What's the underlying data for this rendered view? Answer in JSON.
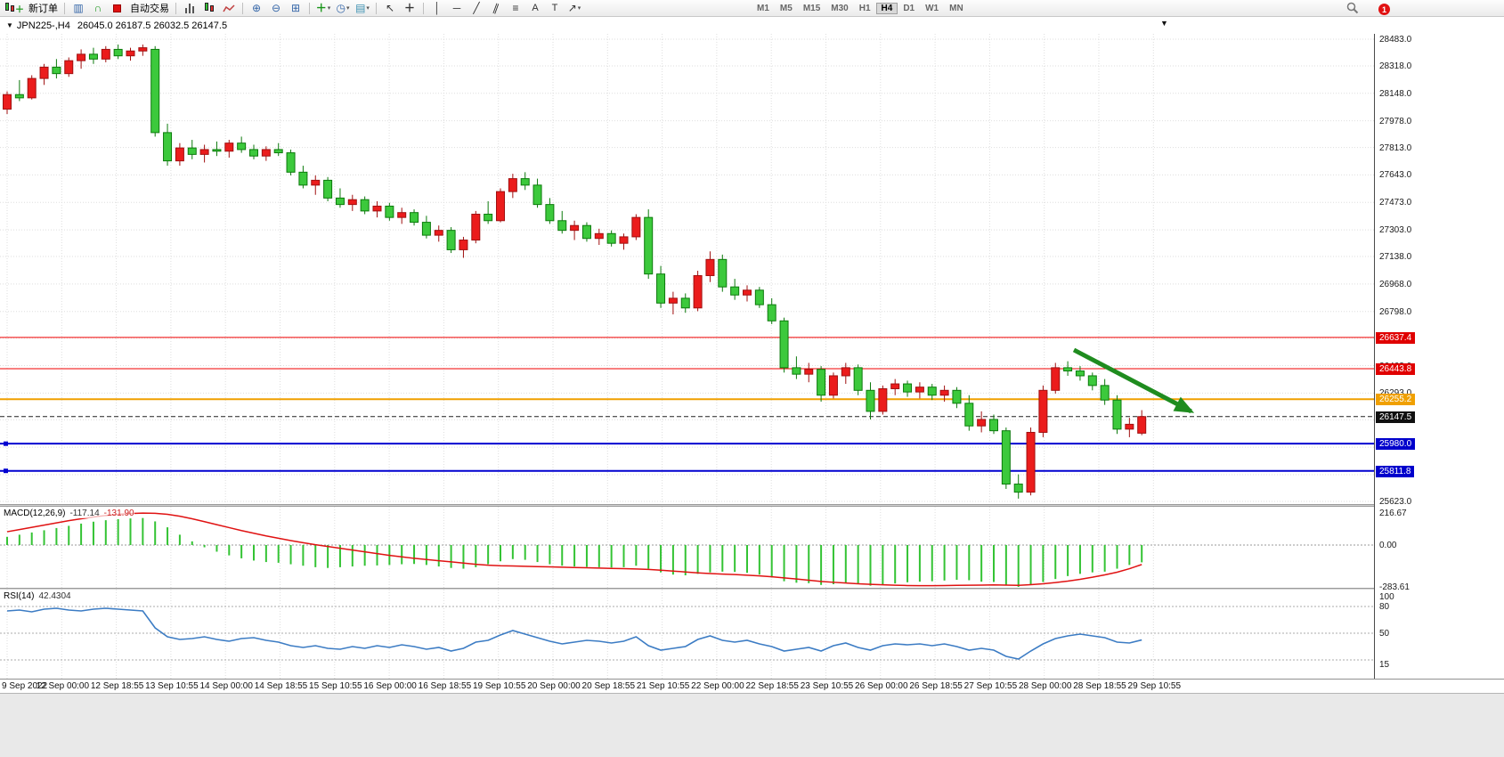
{
  "toolbar": {
    "new_order_label": "新订单",
    "autotrading_label": "自动交易",
    "timeframes": [
      "M1",
      "M5",
      "M15",
      "M30",
      "H1",
      "H4",
      "D1",
      "W1",
      "MN"
    ],
    "active_timeframe": "H4",
    "notification_count": "1"
  },
  "chart_header": {
    "symbol": "JPN225-,H4",
    "ohlc": "26045.0 26187.5 26032.5 26147.5"
  },
  "indicators": {
    "macd": {
      "label": "MACD(12,26,9)",
      "value_main": "-117.14",
      "value_signal": "-131.90"
    },
    "rsi": {
      "label": "RSI(14)",
      "value": "42.4304"
    }
  },
  "chart_data": {
    "type": "candlestick",
    "title": "JPN225-,H4",
    "symbol": "JPN225-",
    "period": "H4",
    "current_bar": {
      "open": 26045.0,
      "high": 26187.5,
      "low": 26032.5,
      "close": 26147.5
    },
    "up_color": "#eb1c1c",
    "down_color": "#3cc93c",
    "price_ticks": [
      28483,
      28318,
      28148,
      27978,
      27813,
      27643,
      27473,
      27303,
      27138,
      26968,
      26798,
      26633,
      26463,
      26293,
      26128,
      25958,
      25788,
      25623
    ],
    "x_ticks": [
      "9 Sep 2022",
      "12 Sep 00:00",
      "12 Sep 18:55",
      "13 Sep 10:55",
      "14 Sep 00:00",
      "14 Sep 18:55",
      "15 Sep 10:55",
      "16 Sep 00:00",
      "16 Sep 18:55",
      "19 Sep 10:55",
      "20 Sep 00:00",
      "20 Sep 18:55",
      "21 Sep 10:55",
      "22 Sep 00:00",
      "22 Sep 18:55",
      "23 Sep 10:55",
      "26 Sep 00:00",
      "26 Sep 18:55",
      "27 Sep 10:55",
      "28 Sep 00:00",
      "28 Sep 18:55",
      "29 Sep 10:55"
    ],
    "candles": [
      [
        28050,
        28160,
        28020,
        28140
      ],
      [
        28140,
        28230,
        28100,
        28120
      ],
      [
        28120,
        28260,
        28110,
        28240
      ],
      [
        28240,
        28330,
        28200,
        28310
      ],
      [
        28310,
        28360,
        28240,
        28270
      ],
      [
        28270,
        28370,
        28250,
        28350
      ],
      [
        28350,
        28420,
        28300,
        28390
      ],
      [
        28390,
        28430,
        28330,
        28360
      ],
      [
        28360,
        28440,
        28340,
        28420
      ],
      [
        28420,
        28450,
        28360,
        28380
      ],
      [
        28380,
        28430,
        28350,
        28410
      ],
      [
        28410,
        28450,
        28380,
        28430
      ],
      [
        28420,
        28440,
        27880,
        27905
      ],
      [
        27905,
        27960,
        27700,
        27730
      ],
      [
        27730,
        27840,
        27700,
        27810
      ],
      [
        27810,
        27860,
        27740,
        27770
      ],
      [
        27770,
        27830,
        27720,
        27800
      ],
      [
        27800,
        27850,
        27760,
        27790
      ],
      [
        27790,
        27860,
        27750,
        27840
      ],
      [
        27840,
        27880,
        27780,
        27800
      ],
      [
        27800,
        27830,
        27740,
        27760
      ],
      [
        27760,
        27820,
        27730,
        27800
      ],
      [
        27800,
        27840,
        27760,
        27780
      ],
      [
        27780,
        27800,
        27640,
        27660
      ],
      [
        27660,
        27700,
        27560,
        27580
      ],
      [
        27580,
        27640,
        27520,
        27610
      ],
      [
        27610,
        27630,
        27480,
        27500
      ],
      [
        27500,
        27560,
        27440,
        27460
      ],
      [
        27460,
        27520,
        27420,
        27490
      ],
      [
        27490,
        27510,
        27400,
        27420
      ],
      [
        27420,
        27480,
        27380,
        27450
      ],
      [
        27450,
        27470,
        27360,
        27380
      ],
      [
        27380,
        27440,
        27340,
        27410
      ],
      [
        27410,
        27430,
        27330,
        27350
      ],
      [
        27350,
        27390,
        27250,
        27270
      ],
      [
        27270,
        27330,
        27230,
        27300
      ],
      [
        27300,
        27320,
        27160,
        27180
      ],
      [
        27180,
        27260,
        27130,
        27240
      ],
      [
        27240,
        27420,
        27220,
        27400
      ],
      [
        27400,
        27480,
        27340,
        27360
      ],
      [
        27360,
        27560,
        27350,
        27540
      ],
      [
        27540,
        27650,
        27500,
        27620
      ],
      [
        27620,
        27660,
        27550,
        27580
      ],
      [
        27580,
        27620,
        27440,
        27460
      ],
      [
        27460,
        27500,
        27340,
        27360
      ],
      [
        27360,
        27420,
        27280,
        27300
      ],
      [
        27300,
        27360,
        27240,
        27330
      ],
      [
        27330,
        27350,
        27230,
        27250
      ],
      [
        27250,
        27310,
        27210,
        27280
      ],
      [
        27280,
        27300,
        27200,
        27220
      ],
      [
        27220,
        27280,
        27180,
        27260
      ],
      [
        27260,
        27400,
        27240,
        27380
      ],
      [
        27380,
        27430,
        27000,
        27030
      ],
      [
        27030,
        27080,
        26820,
        26850
      ],
      [
        26850,
        26920,
        26780,
        26880
      ],
      [
        26880,
        26910,
        26790,
        26820
      ],
      [
        26820,
        27050,
        26800,
        27020
      ],
      [
        27020,
        27170,
        26980,
        27120
      ],
      [
        27120,
        27150,
        26920,
        26950
      ],
      [
        26950,
        27000,
        26870,
        26900
      ],
      [
        26900,
        26960,
        26860,
        26930
      ],
      [
        26930,
        26950,
        26820,
        26840
      ],
      [
        26840,
        26880,
        26720,
        26740
      ],
      [
        26740,
        26760,
        26420,
        26450
      ],
      [
        26450,
        26520,
        26380,
        26410
      ],
      [
        26410,
        26480,
        26360,
        26440
      ],
      [
        26440,
        26460,
        26240,
        26280
      ],
      [
        26280,
        26420,
        26260,
        26400
      ],
      [
        26400,
        26480,
        26350,
        26450
      ],
      [
        26450,
        26470,
        26280,
        26310
      ],
      [
        26310,
        26360,
        26130,
        26180
      ],
      [
        26180,
        26340,
        26160,
        26320
      ],
      [
        26320,
        26380,
        26280,
        26350
      ],
      [
        26350,
        26370,
        26270,
        26300
      ],
      [
        26300,
        26360,
        26260,
        26330
      ],
      [
        26330,
        26350,
        26250,
        26280
      ],
      [
        26280,
        26340,
        26240,
        26310
      ],
      [
        26310,
        26330,
        26200,
        26230
      ],
      [
        26230,
        26280,
        26060,
        26090
      ],
      [
        26090,
        26180,
        26050,
        26130
      ],
      [
        26130,
        26160,
        26040,
        26060
      ],
      [
        26060,
        26080,
        25700,
        25730
      ],
      [
        25730,
        25790,
        25640,
        25680
      ],
      [
        25680,
        26080,
        25660,
        26050
      ],
      [
        26050,
        26340,
        26020,
        26310
      ],
      [
        26310,
        26480,
        26290,
        26450
      ],
      [
        26450,
        26490,
        26400,
        26430
      ],
      [
        26430,
        26460,
        26370,
        26400
      ],
      [
        26400,
        26420,
        26310,
        26340
      ],
      [
        26340,
        26380,
        26220,
        26250
      ],
      [
        26250,
        26280,
        26040,
        26070
      ],
      [
        26070,
        26140,
        26020,
        26100
      ],
      [
        26045,
        26187.5,
        26032.5,
        26147.5
      ]
    ],
    "hlines": [
      {
        "name": "resistance-line-upper",
        "price": 26637.4,
        "color": "#f00000",
        "width": 1,
        "style": "solid",
        "label": "26637.4",
        "badge": "#e00000",
        "handle": false
      },
      {
        "name": "resistance-line-lower",
        "price": 26443.8,
        "color": "#f00000",
        "width": 1,
        "style": "solid",
        "label": "26443.8",
        "badge": "#e00000",
        "handle": false
      },
      {
        "name": "support-line-orange",
        "price": 26255.2,
        "color": "#f0a000",
        "width": 2,
        "style": "solid",
        "label": "26255.2",
        "badge": "#f0a000",
        "handle": false
      },
      {
        "name": "current-price-line",
        "price": 26147.5,
        "color": "#202020",
        "width": 1,
        "style": "dashed",
        "label": "26147.5",
        "badge": "#101010",
        "handle": false
      },
      {
        "name": "support-line-blue-1",
        "price": 25980.0,
        "color": "#0000d0",
        "width": 2,
        "style": "solid",
        "label": "25980.0",
        "badge": "#0000cc",
        "handle": true
      },
      {
        "name": "support-line-blue-2",
        "price": 25811.8,
        "color": "#0000d0",
        "width": 2,
        "style": "solid",
        "label": "25811.8",
        "badge": "#0000cc",
        "handle": true
      }
    ],
    "arrow": {
      "from_bar": 86.5,
      "from_price": 26560,
      "to_bar": 96,
      "to_price": 26180,
      "color": "#1f8c1f",
      "width": 5
    },
    "macd": {
      "axis_ticks": [
        216.67,
        0,
        -283.61
      ],
      "histogram": [
        55,
        70,
        85,
        100,
        115,
        130,
        145,
        158,
        168,
        175,
        180,
        183,
        160,
        120,
        70,
        25,
        -15,
        -45,
        -70,
        -90,
        -105,
        -115,
        -120,
        -130,
        -140,
        -150,
        -155,
        -150,
        -145,
        -140,
        -138,
        -135,
        -130,
        -128,
        -135,
        -145,
        -155,
        -160,
        -150,
        -130,
        -110,
        -95,
        -100,
        -115,
        -130,
        -140,
        -145,
        -148,
        -150,
        -152,
        -150,
        -140,
        -160,
        -185,
        -200,
        -205,
        -195,
        -185,
        -180,
        -182,
        -188,
        -200,
        -220,
        -245,
        -255,
        -258,
        -270,
        -265,
        -255,
        -265,
        -275,
        -268,
        -260,
        -252,
        -248,
        -245,
        -240,
        -235,
        -238,
        -248,
        -250,
        -270,
        -283,
        -270,
        -250,
        -230,
        -210,
        -195,
        -185,
        -180,
        -160,
        -135,
        -117.14
      ],
      "signal": [
        90,
        105,
        120,
        135,
        150,
        165,
        178,
        190,
        200,
        208,
        213,
        216,
        215,
        208,
        195,
        178,
        158,
        138,
        118,
        98,
        80,
        62,
        46,
        30,
        16,
        2,
        -10,
        -22,
        -34,
        -46,
        -58,
        -70,
        -80,
        -90,
        -98,
        -106,
        -114,
        -122,
        -130,
        -136,
        -140,
        -142,
        -144,
        -146,
        -148,
        -150,
        -152,
        -154,
        -156,
        -158,
        -160,
        -162,
        -165,
        -170,
        -176,
        -182,
        -188,
        -193,
        -197,
        -200,
        -204,
        -209,
        -215,
        -222,
        -230,
        -238,
        -246,
        -252,
        -257,
        -262,
        -266,
        -269,
        -272,
        -274,
        -275,
        -275,
        -274,
        -273,
        -272,
        -271,
        -270,
        -271,
        -273,
        -268,
        -262,
        -254,
        -244,
        -232,
        -218,
        -202,
        -184,
        -160,
        -131.9
      ]
    },
    "rsi": {
      "axis_ticks": [
        100,
        80,
        50,
        15
      ],
      "levels": [
        80,
        50,
        20
      ],
      "values": [
        75,
        76,
        74,
        77,
        78,
        76,
        75,
        77,
        78,
        77,
        76,
        75,
        56,
        46,
        43,
        44,
        46,
        43,
        41,
        44,
        45,
        42,
        40,
        36,
        34,
        36,
        33,
        32,
        35,
        33,
        36,
        34,
        37,
        35,
        32,
        34,
        30,
        33,
        40,
        42,
        48,
        53,
        49,
        45,
        41,
        38,
        40,
        42,
        41,
        39,
        41,
        46,
        36,
        31,
        33,
        35,
        43,
        47,
        42,
        40,
        42,
        38,
        35,
        30,
        32,
        34,
        30,
        36,
        39,
        34,
        31,
        36,
        38,
        37,
        38,
        36,
        38,
        35,
        31,
        33,
        31,
        24,
        21,
        30,
        38,
        44,
        47,
        49,
        47,
        45,
        40,
        39,
        42.43
      ]
    }
  }
}
